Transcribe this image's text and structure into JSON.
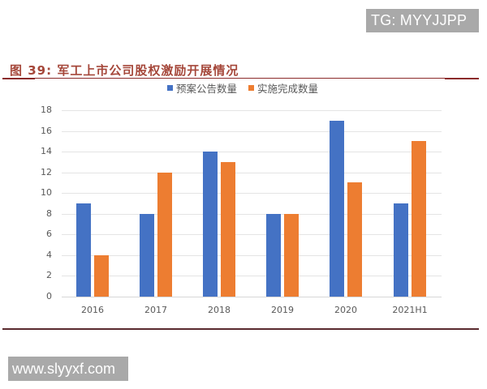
{
  "watermarks": {
    "top_right": "TG: MYYJJPP",
    "bottom_left": "www.slyyxf.com"
  },
  "figure": {
    "title": "图 39:  军工上市公司股权激励开展情况"
  },
  "colors": {
    "series_1": "#4472c4",
    "series_2": "#ed7d31",
    "title": "#a5473a",
    "rule": "#8b2a2a"
  },
  "legend": {
    "items": [
      {
        "label": "预案公告数量",
        "color": "#4472c4"
      },
      {
        "label": "实施完成数量",
        "color": "#ed7d31"
      }
    ]
  },
  "chart_data": {
    "type": "bar",
    "title": "军工上市公司股权激励开展情况",
    "categories": [
      "2016",
      "2017",
      "2018",
      "2019",
      "2020",
      "2021H1"
    ],
    "series": [
      {
        "name": "预案公告数量",
        "color": "#4472c4",
        "values": [
          9,
          8,
          14,
          8,
          17,
          9
        ]
      },
      {
        "name": "实施完成数量",
        "color": "#ed7d31",
        "values": [
          4,
          12,
          13,
          8,
          11,
          15
        ]
      }
    ],
    "xlabel": "",
    "ylabel": "",
    "ylim": [
      0,
      18
    ],
    "yticks": [
      0,
      2,
      4,
      6,
      8,
      10,
      12,
      14,
      16,
      18
    ],
    "grid": true,
    "legend_position": "top"
  }
}
